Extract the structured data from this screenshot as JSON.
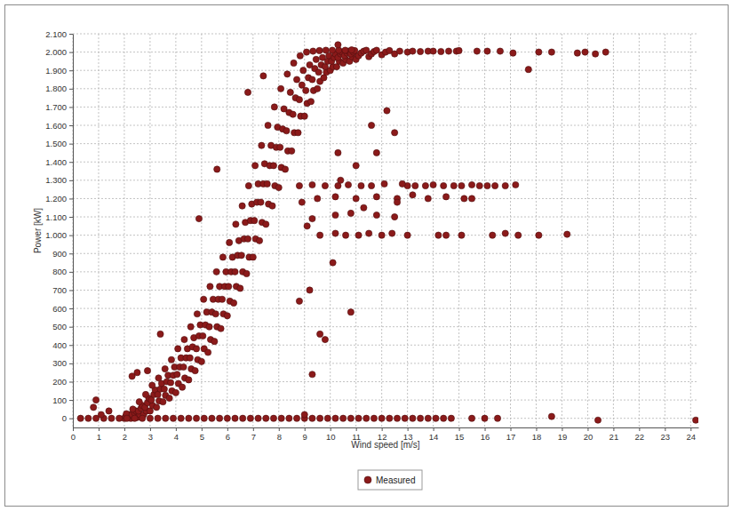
{
  "chart_data": {
    "type": "scatter",
    "x_label": "Wind speed [m/s]",
    "y_label": "Power [kW]",
    "xlim": [
      0,
      24.3
    ],
    "ylim": [
      -50,
      2100
    ],
    "xticks": [
      0,
      1,
      2,
      3,
      4,
      5,
      6,
      7,
      8,
      9,
      10,
      11,
      12,
      13,
      14,
      15,
      16,
      17,
      18,
      19,
      20,
      21,
      22,
      23,
      24
    ],
    "yticks": [
      0,
      100,
      200,
      300,
      400,
      500,
      600,
      700,
      800,
      900,
      {
        "value": 1000,
        "label": "1.000"
      },
      {
        "value": 1100,
        "label": "1.100"
      },
      {
        "value": 1200,
        "label": "1.200"
      },
      {
        "value": 1300,
        "label": "1.300"
      },
      {
        "value": 1400,
        "label": "1.400"
      },
      {
        "value": 1500,
        "label": "1.500"
      },
      {
        "value": 1600,
        "label": "1.600"
      },
      {
        "value": 1700,
        "label": "1.700"
      },
      {
        "value": 1800,
        "label": "1.800"
      },
      {
        "value": 1900,
        "label": "1.900"
      },
      {
        "value": 2000,
        "label": "2.000"
      },
      {
        "value": 2100,
        "label": "2.100"
      }
    ],
    "grid": true,
    "legend": "bottom",
    "marker": "circle",
    "x": [
      2,
      2.1,
      2.05,
      2.15,
      2.2,
      2.08,
      2.25,
      2.35,
      2.3,
      2.4,
      2.45,
      2.33,
      2.5,
      2.6,
      2.55,
      2.65,
      2.7,
      2.58,
      2.75,
      2.85,
      2.8,
      2.9,
      2.95,
      2.83,
      3,
      3.1,
      3.05,
      3.15,
      3.2,
      3.08,
      3.25,
      3.35,
      3.3,
      3.4,
      3.45,
      3.33,
      3.5,
      3.6,
      3.55,
      3.65,
      3.7,
      3.58,
      3.75,
      3.85,
      3.8,
      3.9,
      3.95,
      3.83,
      4,
      4.1,
      4.05,
      4.15,
      4.2,
      4.08,
      4.25,
      4.35,
      4.3,
      4.4,
      4.45,
      4.33,
      4.5,
      4.6,
      4.55,
      4.65,
      4.7,
      4.58,
      4.75,
      4.85,
      4.8,
      4.9,
      4.95,
      4.83,
      5,
      5.1,
      5.05,
      5.15,
      5.2,
      5.08,
      5.25,
      5.35,
      5.3,
      5.4,
      5.45,
      5.33,
      5.5,
      5.6,
      5.55,
      5.65,
      5.7,
      5.58,
      5.75,
      5.85,
      5.8,
      5.9,
      5.95,
      5.83,
      6,
      6.1,
      6.05,
      6.15,
      6.2,
      6.08,
      6.25,
      6.35,
      6.3,
      6.4,
      6.45,
      6.33,
      6.5,
      6.6,
      6.55,
      6.65,
      6.7,
      6.58,
      6.75,
      6.85,
      6.8,
      6.9,
      6.95,
      6.83,
      7,
      7.1,
      7.05,
      7.15,
      7.2,
      7.08,
      7.25,
      7.35,
      7.3,
      7.4,
      7.45,
      7.33,
      7.5,
      7.6,
      7.55,
      7.65,
      7.7,
      7.58,
      7.75,
      7.85,
      7.8,
      7.9,
      7.95,
      7.83,
      8,
      8.1,
      8.05,
      8.15,
      8.2,
      8.08,
      8.25,
      8.35,
      8.3,
      8.4,
      8.45,
      8.33,
      8.5,
      8.6,
      8.55,
      8.65,
      8.7,
      8.58,
      8.75,
      8.85,
      8.8,
      8.9,
      8.95,
      8.83,
      9,
      9.1,
      9.05,
      9.15,
      9.2,
      9.08,
      9.25,
      9.35,
      9.3,
      9.4,
      9.45,
      9.33,
      9.5,
      9.6,
      9.55,
      9.65,
      9.7,
      9.58,
      9.75,
      9.85,
      9.8,
      9.9,
      9.95,
      9.83,
      10,
      10.1,
      10.05,
      10.15,
      10.2,
      10.08,
      10.25,
      10.35,
      10.3,
      10.4,
      10.45,
      10.33,
      10.5,
      10.6,
      10.55,
      10.65,
      10.7,
      10.58,
      10.75,
      10.85,
      10.8,
      10.9,
      10.95,
      10.83,
      11,
      11.1,
      11.2,
      11.3,
      11.4,
      11.5,
      11.6,
      11.7,
      11.8,
      12,
      12.15,
      12.3,
      12.5,
      12.7,
      13,
      13.2,
      13.5,
      13.8,
      14,
      14.3,
      14.6,
      14.9,
      15,
      15.7,
      16.1,
      16.6,
      17.1,
      17.7,
      18.1,
      18.6,
      19.6,
      19.9,
      20.3,
      20.7,
      0.3,
      0.6,
      0.9,
      1.2,
      1.5,
      1.8,
      2.1,
      2.4,
      2.7,
      3,
      3.3,
      3.6,
      3.9,
      4.2,
      4.5,
      4.8,
      5.1,
      5.4,
      5.7,
      6,
      6.3,
      6.6,
      6.9,
      7.2,
      7.5,
      7.8,
      8.1,
      8.4,
      8.7,
      9,
      9.3,
      9.6,
      9.9,
      10.2,
      10.5,
      10.8,
      11.1,
      11.4,
      11.7,
      12,
      12.3,
      12.6,
      12.9,
      13.2,
      13.5,
      13.8,
      14.1,
      14.4,
      14.7,
      15.5,
      16,
      16.5,
      18.6,
      20.4,
      24.2,
      8.8,
      9.3,
      9.8,
      10.3,
      10.7,
      11.2,
      11.6,
      12.1,
      13,
      13.3,
      13.7,
      14,
      14.4,
      14.8,
      15.1,
      15.5,
      15.8,
      16.1,
      16.4,
      16.8,
      17.2,
      9.5,
      10.2,
      11,
      11.8,
      12.6,
      13.2,
      13.8,
      14.5,
      15.2,
      15.5,
      9.3,
      10.2,
      10.8,
      11.3,
      11.8,
      12.5,
      9.6,
      10.2,
      10.6,
      11.1,
      11.5,
      12,
      12.4,
      13,
      14.2,
      14.5,
      15.1,
      16.3,
      16.8,
      17.3,
      18.1,
      19.2,
      0.8,
      0.9,
      1.4,
      1.1,
      2.3,
      2.5,
      2.9,
      3.4,
      4.9,
      5.6,
      6.8,
      7.4,
      9.3,
      9,
      9.6,
      9.8,
      9.2,
      8.8,
      10.1,
      10.8,
      11.6,
      12.5,
      12.2,
      8.9,
      10.3,
      10.4,
      11,
      11.8,
      12.6,
      10.3,
      9.1,
      12.8
    ],
    "series": [
      {
        "name": "Measured",
        "color": "#8b1a1a",
        "values": [
          0,
          5,
          10,
          15,
          20,
          25,
          0,
          10,
          20,
          30,
          40,
          50,
          5,
          20,
          40,
          55,
          70,
          90,
          20,
          40,
          60,
          85,
          110,
          130,
          40,
          70,
          100,
          130,
          155,
          180,
          60,
          95,
          130,
          160,
          190,
          220,
          90,
          125,
          160,
          200,
          235,
          270,
          110,
          150,
          195,
          235,
          280,
          320,
          140,
          190,
          240,
          280,
          330,
          380,
          170,
          220,
          280,
          330,
          380,
          430,
          210,
          270,
          330,
          390,
          440,
          500,
          260,
          320,
          380,
          450,
          510,
          570,
          310,
          380,
          450,
          510,
          580,
          650,
          360,
          430,
          500,
          580,
          650,
          720,
          420,
          500,
          570,
          650,
          720,
          800,
          490,
          570,
          650,
          720,
          800,
          880,
          560,
          640,
          720,
          800,
          880,
          960,
          630,
          720,
          800,
          890,
          970,
          1060,
          710,
          800,
          890,
          980,
          1070,
          1160,
          790,
          880,
          980,
          1080,
          1170,
          1270,
          880,
          980,
          1080,
          1180,
          1280,
          1380,
          970,
          1070,
          1180,
          1280,
          1390,
          1490,
          1060,
          1170,
          1280,
          1380,
          1490,
          1600,
          1160,
          1270,
          1380,
          1480,
          1590,
          1700,
          1260,
          1370,
          1480,
          1580,
          1690,
          1800,
          1360,
          1460,
          1570,
          1670,
          1780,
          1880,
          1460,
          1560,
          1660,
          1750,
          1850,
          1940,
          1560,
          1650,
          1740,
          1820,
          1900,
          1980,
          1650,
          1720,
          1790,
          1860,
          1930,
          2000,
          1730,
          1790,
          1850,
          1910,
          1960,
          2005,
          1800,
          1840,
          1890,
          1930,
          1970,
          2008,
          1860,
          1890,
          1920,
          1950,
          1980,
          2010,
          1900,
          1920,
          1950,
          1970,
          1990,
          2010,
          1920,
          1950,
          1970,
          1990,
          2000,
          2010,
          1940,
          1960,
          1980,
          1995,
          2005,
          2010,
          1950,
          1975,
          1990,
          2000,
          2008,
          2012,
          1960,
          1980,
          1995,
          2005,
          2010,
          1975,
          1990,
          2003,
          2010,
          1985,
          2000,
          2008,
          1990,
          2005,
          2000,
          2005,
          2003,
          2005,
          2005,
          2003,
          2005,
          2005,
          2008,
          2005,
          2005,
          2005,
          1995,
          1905,
          2000,
          2000,
          1995,
          2000,
          1990,
          2000,
          0,
          0,
          0,
          0,
          0,
          0,
          0,
          0,
          0,
          0,
          0,
          0,
          0,
          0,
          0,
          0,
          0,
          0,
          0,
          0,
          0,
          0,
          0,
          0,
          0,
          0,
          0,
          0,
          0,
          0,
          0,
          0,
          0,
          0,
          0,
          0,
          0,
          0,
          0,
          0,
          0,
          0,
          0,
          0,
          0,
          0,
          0,
          0,
          0,
          0,
          0,
          0,
          10,
          -10,
          -10,
          1270,
          1275,
          1270,
          1270,
          1275,
          1270,
          1270,
          1280,
          1270,
          1270,
          1270,
          1275,
          1270,
          1270,
          1270,
          1275,
          1270,
          1270,
          1270,
          1270,
          1275,
          1200,
          1210,
          1200,
          1210,
          1200,
          1220,
          1200,
          1210,
          1200,
          1200,
          1090,
          1110,
          1120,
          1150,
          1110,
          1100,
          1000,
          1010,
          1000,
          1000,
          1010,
          1000,
          1010,
          1000,
          1000,
          1000,
          1000,
          1000,
          1010,
          1000,
          1000,
          1005,
          60,
          100,
          40,
          20,
          230,
          250,
          260,
          460,
          1090,
          1360,
          1780,
          1870,
          240,
          20,
          460,
          430,
          700,
          640,
          850,
          580,
          1600,
          1560,
          1680,
          1180,
          1450,
          1300,
          1380,
          1450,
          1180,
          2040,
          1050,
          1280
        ]
      }
    ]
  }
}
